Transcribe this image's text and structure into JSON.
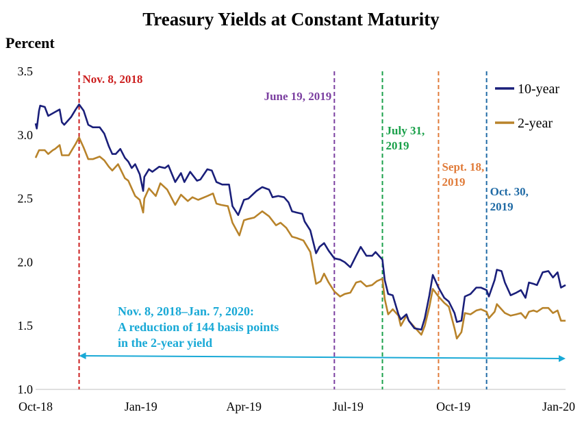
{
  "chart_data": {
    "type": "line",
    "title": "Treasury Yields at Constant Maturity",
    "ylabel": "Percent",
    "ylim": [
      1.0,
      3.5
    ],
    "yticks": [
      "1.0",
      "1.5",
      "2.0",
      "2.5",
      "3.0",
      "3.5"
    ],
    "x_tick_labels": [
      "Oct-18",
      "Jan-19",
      "Apr-19",
      "Jul-19",
      "Oct-19",
      "Jan-20"
    ],
    "x_ticks": [
      "2018-10-01",
      "2019-01-01",
      "2019-04-01",
      "2019-07-01",
      "2019-10-01",
      "2020-01-01"
    ],
    "xlim": [
      "2018-10-01",
      "2020-01-07"
    ],
    "grid": false,
    "legend_position": "top-right",
    "colors": {
      "ten_year": "#1a1f7a",
      "two_year": "#b8832a",
      "nov8": "#cc1f1f",
      "june19": "#7b3fa0",
      "july31": "#1aa04a",
      "sept18": "#e07b39",
      "oct30": "#1f6aa5",
      "annotation": "#19a9d6"
    },
    "series": [
      {
        "name": "10-year",
        "color_key": "ten_year",
        "points": [
          [
            "2018-10-01",
            3.09
          ],
          [
            "2018-10-02",
            3.05
          ],
          [
            "2018-10-04",
            3.19
          ],
          [
            "2018-10-05",
            3.23
          ],
          [
            "2018-10-09",
            3.22
          ],
          [
            "2018-10-12",
            3.15
          ],
          [
            "2018-10-16",
            3.17
          ],
          [
            "2018-10-18",
            3.18
          ],
          [
            "2018-10-22",
            3.2
          ],
          [
            "2018-10-24",
            3.1
          ],
          [
            "2018-10-26",
            3.08
          ],
          [
            "2018-10-30",
            3.12
          ],
          [
            "2018-11-01",
            3.14
          ],
          [
            "2018-11-05",
            3.2
          ],
          [
            "2018-11-08",
            3.24
          ],
          [
            "2018-11-12",
            3.19
          ],
          [
            "2018-11-16",
            3.08
          ],
          [
            "2018-11-20",
            3.06
          ],
          [
            "2018-11-26",
            3.06
          ],
          [
            "2018-11-30",
            3.01
          ],
          [
            "2018-12-04",
            2.91
          ],
          [
            "2018-12-07",
            2.85
          ],
          [
            "2018-12-10",
            2.85
          ],
          [
            "2018-12-14",
            2.89
          ],
          [
            "2018-12-18",
            2.82
          ],
          [
            "2018-12-21",
            2.79
          ],
          [
            "2018-12-24",
            2.74
          ],
          [
            "2018-12-27",
            2.77
          ],
          [
            "2018-12-31",
            2.69
          ],
          [
            "2019-01-03",
            2.56
          ],
          [
            "2019-01-04",
            2.67
          ],
          [
            "2019-01-08",
            2.73
          ],
          [
            "2019-01-11",
            2.71
          ],
          [
            "2019-01-17",
            2.75
          ],
          [
            "2019-01-22",
            2.74
          ],
          [
            "2019-01-25",
            2.76
          ],
          [
            "2019-01-31",
            2.63
          ],
          [
            "2019-02-05",
            2.7
          ],
          [
            "2019-02-08",
            2.63
          ],
          [
            "2019-02-13",
            2.71
          ],
          [
            "2019-02-19",
            2.64
          ],
          [
            "2019-02-22",
            2.65
          ],
          [
            "2019-02-28",
            2.73
          ],
          [
            "2019-03-04",
            2.72
          ],
          [
            "2019-03-08",
            2.63
          ],
          [
            "2019-03-13",
            2.61
          ],
          [
            "2019-03-19",
            2.61
          ],
          [
            "2019-03-22",
            2.44
          ],
          [
            "2019-03-27",
            2.37
          ],
          [
            "2019-04-01",
            2.49
          ],
          [
            "2019-04-05",
            2.5
          ],
          [
            "2019-04-12",
            2.56
          ],
          [
            "2019-04-17",
            2.59
          ],
          [
            "2019-04-23",
            2.57
          ],
          [
            "2019-04-26",
            2.51
          ],
          [
            "2019-05-01",
            2.52
          ],
          [
            "2019-05-06",
            2.51
          ],
          [
            "2019-05-10",
            2.47
          ],
          [
            "2019-05-13",
            2.4
          ],
          [
            "2019-05-17",
            2.39
          ],
          [
            "2019-05-22",
            2.38
          ],
          [
            "2019-05-24",
            2.32
          ],
          [
            "2019-05-29",
            2.25
          ],
          [
            "2019-06-03",
            2.07
          ],
          [
            "2019-06-06",
            2.12
          ],
          [
            "2019-06-10",
            2.15
          ],
          [
            "2019-06-14",
            2.09
          ],
          [
            "2019-06-19",
            2.03
          ],
          [
            "2019-06-24",
            2.02
          ],
          [
            "2019-06-28",
            2.0
          ],
          [
            "2019-07-03",
            1.96
          ],
          [
            "2019-07-08",
            2.05
          ],
          [
            "2019-07-12",
            2.12
          ],
          [
            "2019-07-17",
            2.05
          ],
          [
            "2019-07-22",
            2.05
          ],
          [
            "2019-07-25",
            2.08
          ],
          [
            "2019-07-31",
            2.02
          ],
          [
            "2019-08-02",
            1.86
          ],
          [
            "2019-08-05",
            1.75
          ],
          [
            "2019-08-09",
            1.74
          ],
          [
            "2019-08-14",
            1.59
          ],
          [
            "2019-08-16",
            1.55
          ],
          [
            "2019-08-21",
            1.59
          ],
          [
            "2019-08-23",
            1.54
          ],
          [
            "2019-08-28",
            1.48
          ],
          [
            "2019-09-03",
            1.47
          ],
          [
            "2019-09-06",
            1.56
          ],
          [
            "2019-09-10",
            1.74
          ],
          [
            "2019-09-13",
            1.9
          ],
          [
            "2019-09-18",
            1.8
          ],
          [
            "2019-09-23",
            1.72
          ],
          [
            "2019-09-27",
            1.69
          ],
          [
            "2019-10-02",
            1.6
          ],
          [
            "2019-10-04",
            1.53
          ],
          [
            "2019-10-08",
            1.54
          ],
          [
            "2019-10-11",
            1.73
          ],
          [
            "2019-10-16",
            1.75
          ],
          [
            "2019-10-21",
            1.8
          ],
          [
            "2019-10-25",
            1.8
          ],
          [
            "2019-10-30",
            1.78
          ],
          [
            "2019-11-01",
            1.73
          ],
          [
            "2019-11-06",
            1.86
          ],
          [
            "2019-11-08",
            1.94
          ],
          [
            "2019-11-12",
            1.93
          ],
          [
            "2019-11-15",
            1.84
          ],
          [
            "2019-11-20",
            1.74
          ],
          [
            "2019-11-25",
            1.76
          ],
          [
            "2019-11-29",
            1.78
          ],
          [
            "2019-12-03",
            1.72
          ],
          [
            "2019-12-06",
            1.84
          ],
          [
            "2019-12-10",
            1.83
          ],
          [
            "2019-12-13",
            1.82
          ],
          [
            "2019-12-18",
            1.92
          ],
          [
            "2019-12-23",
            1.93
          ],
          [
            "2019-12-27",
            1.88
          ],
          [
            "2019-12-31",
            1.92
          ],
          [
            "2020-01-03",
            1.8
          ],
          [
            "2020-01-07",
            1.82
          ]
        ]
      },
      {
        "name": "2-year",
        "color_key": "two_year",
        "points": [
          [
            "2018-10-01",
            2.82
          ],
          [
            "2018-10-04",
            2.88
          ],
          [
            "2018-10-09",
            2.88
          ],
          [
            "2018-10-12",
            2.85
          ],
          [
            "2018-10-16",
            2.88
          ],
          [
            "2018-10-18",
            2.89
          ],
          [
            "2018-10-22",
            2.92
          ],
          [
            "2018-10-24",
            2.84
          ],
          [
            "2018-10-30",
            2.84
          ],
          [
            "2018-11-01",
            2.87
          ],
          [
            "2018-11-05",
            2.93
          ],
          [
            "2018-11-08",
            2.98
          ],
          [
            "2018-11-12",
            2.9
          ],
          [
            "2018-11-16",
            2.81
          ],
          [
            "2018-11-20",
            2.81
          ],
          [
            "2018-11-26",
            2.83
          ],
          [
            "2018-11-30",
            2.8
          ],
          [
            "2018-12-04",
            2.75
          ],
          [
            "2018-12-07",
            2.72
          ],
          [
            "2018-12-12",
            2.77
          ],
          [
            "2018-12-18",
            2.66
          ],
          [
            "2018-12-21",
            2.64
          ],
          [
            "2018-12-24",
            2.58
          ],
          [
            "2018-12-27",
            2.52
          ],
          [
            "2018-12-31",
            2.49
          ],
          [
            "2019-01-03",
            2.39
          ],
          [
            "2019-01-04",
            2.5
          ],
          [
            "2019-01-08",
            2.58
          ],
          [
            "2019-01-14",
            2.52
          ],
          [
            "2019-01-18",
            2.62
          ],
          [
            "2019-01-24",
            2.57
          ],
          [
            "2019-01-31",
            2.45
          ],
          [
            "2019-02-05",
            2.53
          ],
          [
            "2019-02-11",
            2.48
          ],
          [
            "2019-02-15",
            2.51
          ],
          [
            "2019-02-20",
            2.49
          ],
          [
            "2019-02-28",
            2.52
          ],
          [
            "2019-03-05",
            2.54
          ],
          [
            "2019-03-08",
            2.46
          ],
          [
            "2019-03-12",
            2.45
          ],
          [
            "2019-03-18",
            2.44
          ],
          [
            "2019-03-22",
            2.31
          ],
          [
            "2019-03-28",
            2.21
          ],
          [
            "2019-04-01",
            2.33
          ],
          [
            "2019-04-05",
            2.34
          ],
          [
            "2019-04-10",
            2.35
          ],
          [
            "2019-04-17",
            2.4
          ],
          [
            "2019-04-23",
            2.36
          ],
          [
            "2019-04-29",
            2.29
          ],
          [
            "2019-05-03",
            2.31
          ],
          [
            "2019-05-08",
            2.27
          ],
          [
            "2019-05-13",
            2.2
          ],
          [
            "2019-05-17",
            2.19
          ],
          [
            "2019-05-23",
            2.17
          ],
          [
            "2019-05-29",
            2.08
          ],
          [
            "2019-06-03",
            1.83
          ],
          [
            "2019-06-07",
            1.85
          ],
          [
            "2019-06-10",
            1.91
          ],
          [
            "2019-06-14",
            1.84
          ],
          [
            "2019-06-19",
            1.77
          ],
          [
            "2019-06-24",
            1.73
          ],
          [
            "2019-06-28",
            1.75
          ],
          [
            "2019-07-03",
            1.76
          ],
          [
            "2019-07-08",
            1.84
          ],
          [
            "2019-07-12",
            1.85
          ],
          [
            "2019-07-17",
            1.81
          ],
          [
            "2019-07-22",
            1.82
          ],
          [
            "2019-07-26",
            1.85
          ],
          [
            "2019-07-31",
            1.87
          ],
          [
            "2019-08-02",
            1.71
          ],
          [
            "2019-08-05",
            1.59
          ],
          [
            "2019-08-09",
            1.63
          ],
          [
            "2019-08-14",
            1.58
          ],
          [
            "2019-08-16",
            1.5
          ],
          [
            "2019-08-21",
            1.58
          ],
          [
            "2019-08-23",
            1.54
          ],
          [
            "2019-08-28",
            1.49
          ],
          [
            "2019-09-03",
            1.43
          ],
          [
            "2019-09-06",
            1.5
          ],
          [
            "2019-09-10",
            1.65
          ],
          [
            "2019-09-13",
            1.79
          ],
          [
            "2019-09-18",
            1.73
          ],
          [
            "2019-09-23",
            1.68
          ],
          [
            "2019-09-27",
            1.65
          ],
          [
            "2019-10-02",
            1.48
          ],
          [
            "2019-10-04",
            1.4
          ],
          [
            "2019-10-08",
            1.45
          ],
          [
            "2019-10-11",
            1.6
          ],
          [
            "2019-10-16",
            1.59
          ],
          [
            "2019-10-21",
            1.62
          ],
          [
            "2019-10-25",
            1.63
          ],
          [
            "2019-10-30",
            1.61
          ],
          [
            "2019-11-01",
            1.56
          ],
          [
            "2019-11-06",
            1.61
          ],
          [
            "2019-11-08",
            1.67
          ],
          [
            "2019-11-12",
            1.63
          ],
          [
            "2019-11-15",
            1.6
          ],
          [
            "2019-11-20",
            1.58
          ],
          [
            "2019-11-25",
            1.59
          ],
          [
            "2019-11-29",
            1.6
          ],
          [
            "2019-12-03",
            1.56
          ],
          [
            "2019-12-06",
            1.61
          ],
          [
            "2019-12-10",
            1.62
          ],
          [
            "2019-12-13",
            1.61
          ],
          [
            "2019-12-18",
            1.64
          ],
          [
            "2019-12-23",
            1.64
          ],
          [
            "2019-12-27",
            1.6
          ],
          [
            "2019-12-31",
            1.62
          ],
          [
            "2020-01-03",
            1.54
          ],
          [
            "2020-01-07",
            1.54
          ]
        ]
      }
    ],
    "event_lines": [
      {
        "date": "2018-11-08",
        "label_lines": [
          "Nov. 8, 2018"
        ],
        "color_key": "nov8",
        "label_align": "start"
      },
      {
        "date": "2019-06-19",
        "label_lines": [
          "June 19, 2019"
        ],
        "color_key": "june19",
        "label_align": "end"
      },
      {
        "date": "2019-07-31",
        "label_lines": [
          "July 31,",
          "2019"
        ],
        "color_key": "july31",
        "label_align": "start"
      },
      {
        "date": "2019-09-18",
        "label_lines": [
          "Sept. 18,",
          "2019"
        ],
        "color_key": "sept18",
        "label_align": "start"
      },
      {
        "date": "2019-10-30",
        "label_lines": [
          "Oct. 30,",
          "2019"
        ],
        "color_key": "oct30",
        "label_align": "start"
      }
    ],
    "annotation": {
      "lines": [
        "Nov. 8, 2018–Jan. 7, 2020:",
        "A reduction of 144 basis points",
        "in the 2-year yield"
      ],
      "arrow_from": "2018-11-08",
      "arrow_to": "2020-01-07"
    }
  }
}
